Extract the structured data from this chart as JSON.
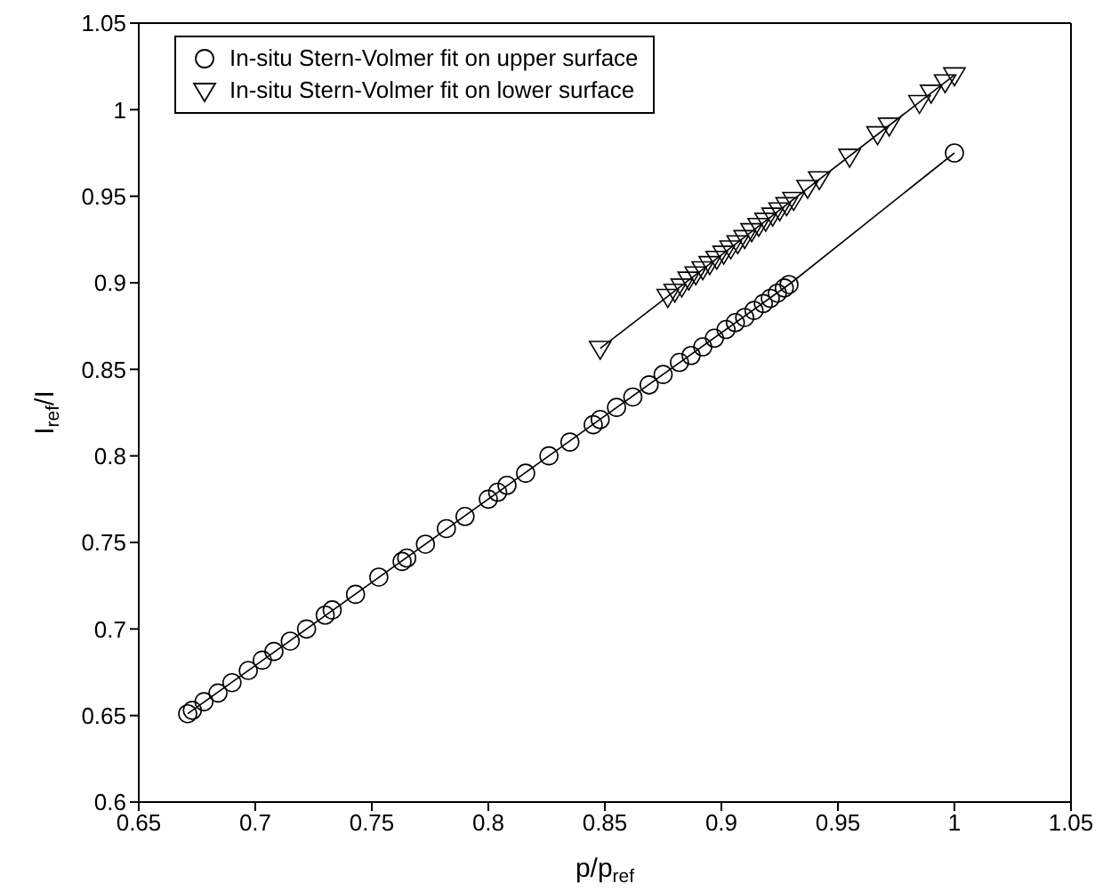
{
  "chart_data": {
    "type": "scatter",
    "xlabel": "p/p$_{ref}$",
    "ylabel": "I$_{ref}$/I",
    "xlim": [
      0.65,
      1.05
    ],
    "ylim": [
      0.6,
      1.05
    ],
    "xticks": [
      0.65,
      0.7,
      0.75,
      0.8,
      0.85,
      0.9,
      0.95,
      1,
      1.05
    ],
    "yticks": [
      0.6,
      0.65,
      0.7,
      0.75,
      0.8,
      0.85,
      0.9,
      0.95,
      1,
      1.05
    ],
    "legend": "top left",
    "series": [
      {
        "name": "In-situ Stern-Volmer fit on upper surface",
        "marker": "circle",
        "color": "#000000",
        "x": [
          0.671,
          0.673,
          0.678,
          0.684,
          0.69,
          0.697,
          0.703,
          0.708,
          0.715,
          0.722,
          0.73,
          0.733,
          0.743,
          0.753,
          0.763,
          0.765,
          0.773,
          0.782,
          0.79,
          0.8,
          0.804,
          0.808,
          0.816,
          0.826,
          0.835,
          0.845,
          0.848,
          0.855,
          0.862,
          0.869,
          0.875,
          0.882,
          0.887,
          0.892,
          0.897,
          0.902,
          0.906,
          0.91,
          0.914,
          0.918,
          0.921,
          0.924,
          0.927,
          0.929,
          1.0
        ],
        "values": [
          0.651,
          0.653,
          0.658,
          0.663,
          0.669,
          0.676,
          0.682,
          0.687,
          0.693,
          0.7,
          0.708,
          0.711,
          0.72,
          0.73,
          0.739,
          0.741,
          0.749,
          0.758,
          0.765,
          0.775,
          0.779,
          0.783,
          0.79,
          0.8,
          0.808,
          0.818,
          0.821,
          0.828,
          0.834,
          0.841,
          0.847,
          0.854,
          0.858,
          0.863,
          0.868,
          0.873,
          0.877,
          0.88,
          0.884,
          0.888,
          0.891,
          0.894,
          0.897,
          0.899,
          0.975
        ]
      },
      {
        "name": "In-situ Stern-Volmer fit on lower surface",
        "marker": "triangle",
        "color": "#000000",
        "x": [
          0.848,
          0.877,
          0.88,
          0.883,
          0.886,
          0.889,
          0.892,
          0.895,
          0.898,
          0.901,
          0.904,
          0.907,
          0.91,
          0.913,
          0.916,
          0.919,
          0.922,
          0.925,
          0.928,
          0.931,
          0.937,
          0.942,
          0.955,
          0.967,
          0.972,
          0.985,
          0.99,
          0.996,
          1.0
        ],
        "values": [
          0.862,
          0.892,
          0.895,
          0.898,
          0.902,
          0.905,
          0.908,
          0.911,
          0.914,
          0.917,
          0.92,
          0.923,
          0.926,
          0.93,
          0.933,
          0.936,
          0.939,
          0.942,
          0.945,
          0.948,
          0.955,
          0.96,
          0.973,
          0.986,
          0.991,
          1.004,
          1.01,
          1.016,
          1.02
        ]
      },
      {
        "type": "line",
        "marker": "none",
        "color": "#000000",
        "x": [
          0.671,
          0.93,
          1.0
        ],
        "values": [
          0.651,
          0.9,
          0.975
        ]
      },
      {
        "type": "line",
        "marker": "none",
        "color": "#000000",
        "x": [
          0.848,
          1.0
        ],
        "values": [
          0.862,
          1.02
        ]
      }
    ]
  }
}
